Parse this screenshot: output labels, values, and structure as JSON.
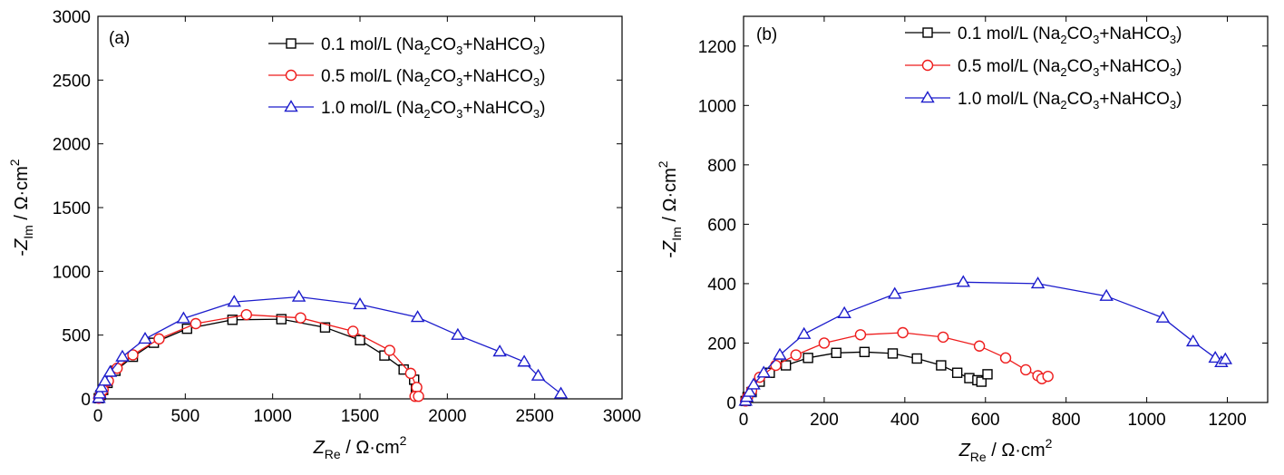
{
  "chart_data": [
    {
      "panel": "(a)",
      "type": "scatter",
      "title": "",
      "xlabel": {
        "main": "Z",
        "sub": "Re",
        "unit": " / Ω·cm",
        "sup": "2"
      },
      "ylabel": {
        "prefix": "-",
        "main": "Z",
        "sub": "Im",
        "unit": " / Ω·cm",
        "sup": "2"
      },
      "xlim": [
        0,
        3000
      ],
      "ylim": [
        0,
        3000
      ],
      "xticks": [
        0,
        500,
        1000,
        1500,
        2000,
        2500,
        3000
      ],
      "yticks": [
        0,
        500,
        1000,
        1500,
        2000,
        2500,
        3000
      ],
      "grid": false,
      "legend_position": "top-right",
      "series": [
        {
          "legend": {
            "pre": "0.1 mol/L (Na",
            "s1": "2",
            "mid": "CO",
            "s2": "3",
            "post": "+NaHCO",
            "s3": "3",
            "end": ")"
          },
          "color": "#000000",
          "marker": "square",
          "points": [
            [
              5,
              5
            ],
            [
              15,
              30
            ],
            [
              30,
              70
            ],
            [
              55,
              125
            ],
            [
              100,
              220
            ],
            [
              200,
              330
            ],
            [
              320,
              440
            ],
            [
              510,
              550
            ],
            [
              770,
              620
            ],
            [
              1050,
              625
            ],
            [
              1300,
              560
            ],
            [
              1500,
              460
            ],
            [
              1640,
              340
            ],
            [
              1750,
              230
            ],
            [
              1810,
              150
            ],
            [
              1820,
              80
            ],
            [
              1820,
              30
            ]
          ]
        },
        {
          "legend": {
            "pre": "0.5 mol/L (Na",
            "s1": "2",
            "mid": "CO",
            "s2": "3",
            "post": "+NaHCO",
            "s3": "3",
            "end": ")"
          },
          "color": "#ee1c1c",
          "marker": "circle",
          "points": [
            [
              5,
              5
            ],
            [
              15,
              30
            ],
            [
              30,
              70
            ],
            [
              60,
              140
            ],
            [
              110,
              240
            ],
            [
              200,
              345
            ],
            [
              350,
              470
            ],
            [
              560,
              590
            ],
            [
              850,
              660
            ],
            [
              1160,
              635
            ],
            [
              1460,
              530
            ],
            [
              1670,
              380
            ],
            [
              1790,
              200
            ],
            [
              1825,
              90
            ],
            [
              1815,
              20
            ],
            [
              1835,
              20
            ]
          ]
        },
        {
          "legend": {
            "pre": "1.0 mol/L (Na",
            "s1": "2",
            "mid": "CO",
            "s2": "3",
            "post": "+NaHCO",
            "s3": "3",
            "end": ")"
          },
          "color": "#1c1ccc",
          "marker": "triangle",
          "points": [
            [
              5,
              5
            ],
            [
              10,
              40
            ],
            [
              20,
              90
            ],
            [
              40,
              140
            ],
            [
              70,
              210
            ],
            [
              140,
              330
            ],
            [
              270,
              470
            ],
            [
              490,
              630
            ],
            [
              780,
              760
            ],
            [
              1150,
              800
            ],
            [
              1500,
              740
            ],
            [
              1830,
              640
            ],
            [
              2060,
              500
            ],
            [
              2300,
              370
            ],
            [
              2440,
              290
            ],
            [
              2520,
              180
            ],
            [
              2650,
              40
            ]
          ]
        }
      ]
    },
    {
      "panel": "(b)",
      "type": "scatter",
      "title": "",
      "xlabel": {
        "main": "Z",
        "sub": "Re",
        "unit": " / Ω·cm",
        "sup": "2"
      },
      "ylabel": {
        "prefix": "-",
        "main": "Z",
        "sub": "Im",
        "unit": " / Ω·cm",
        "sup": "2"
      },
      "xlim": [
        0,
        1300
      ],
      "ylim": [
        0,
        1300
      ],
      "xticks": [
        0,
        200,
        400,
        600,
        800,
        1000,
        1200
      ],
      "yticks": [
        0,
        200,
        400,
        600,
        800,
        1000,
        1200
      ],
      "grid": false,
      "legend_position": "top-right",
      "series": [
        {
          "legend": {
            "pre": "0.1 mol/L (Na",
            "s1": "2",
            "mid": "CO",
            "s2": "3",
            "post": "+NaHCO",
            "s3": "3",
            "end": ")"
          },
          "color": "#000000",
          "marker": "square",
          "points": [
            [
              5,
              5
            ],
            [
              10,
              18
            ],
            [
              20,
              35
            ],
            [
              40,
              70
            ],
            [
              65,
              100
            ],
            [
              105,
              125
            ],
            [
              160,
              150
            ],
            [
              230,
              167
            ],
            [
              300,
              170
            ],
            [
              370,
              165
            ],
            [
              430,
              148
            ],
            [
              490,
              125
            ],
            [
              530,
              100
            ],
            [
              560,
              82
            ],
            [
              580,
              75
            ],
            [
              590,
              70
            ],
            [
              605,
              95
            ]
          ]
        },
        {
          "legend": {
            "pre": "0.5 mol/L (Na",
            "s1": "2",
            "mid": "CO",
            "s2": "3",
            "post": "+NaHCO",
            "s3": "3",
            "end": ")"
          },
          "color": "#ee1c1c",
          "marker": "circle",
          "points": [
            [
              5,
              5
            ],
            [
              10,
              18
            ],
            [
              20,
              40
            ],
            [
              40,
              85
            ],
            [
              80,
              125
            ],
            [
              130,
              160
            ],
            [
              200,
              200
            ],
            [
              290,
              228
            ],
            [
              395,
              235
            ],
            [
              495,
              220
            ],
            [
              585,
              190
            ],
            [
              650,
              150
            ],
            [
              700,
              110
            ],
            [
              730,
              90
            ],
            [
              740,
              80
            ],
            [
              755,
              88
            ]
          ]
        },
        {
          "legend": {
            "pre": "1.0 mol/L (Na",
            "s1": "2",
            "mid": "CO",
            "s2": "3",
            "post": "+NaHCO",
            "s3": "3",
            "end": ")"
          },
          "color": "#1c1ccc",
          "marker": "triangle",
          "points": [
            [
              5,
              5
            ],
            [
              8,
              18
            ],
            [
              15,
              35
            ],
            [
              25,
              60
            ],
            [
              50,
              100
            ],
            [
              90,
              160
            ],
            [
              150,
              230
            ],
            [
              250,
              300
            ],
            [
              375,
              365
            ],
            [
              545,
              405
            ],
            [
              730,
              400
            ],
            [
              900,
              358
            ],
            [
              1040,
              285
            ],
            [
              1115,
              205
            ],
            [
              1170,
              150
            ],
            [
              1185,
              135
            ],
            [
              1195,
              145
            ]
          ]
        }
      ]
    }
  ]
}
